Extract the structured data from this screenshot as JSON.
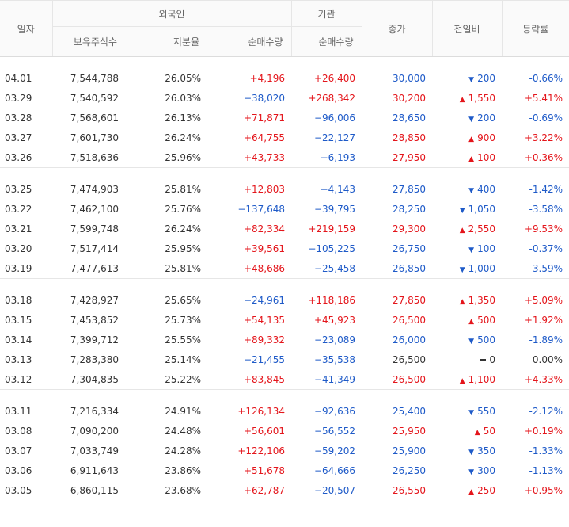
{
  "headers": {
    "date": "일자",
    "foreign": "외국인",
    "holdings": "보유주식수",
    "ratio": "지분율",
    "net_foreign": "순매수량",
    "institution": "기관",
    "net_inst": "순매수량",
    "close": "종가",
    "change": "전일비",
    "rate": "등락률"
  },
  "colors": {
    "up": "#e4151b",
    "down": "#1e5ac8",
    "flat": "#333333"
  },
  "groups": [
    [
      {
        "date": "04.01",
        "holdings": "7,544,788",
        "ratio": "26.05%",
        "foreign": "+4,196",
        "inst": "+26,400",
        "close": "30,000",
        "dir": "down",
        "change": "200",
        "rate": "-0.66%"
      },
      {
        "date": "03.29",
        "holdings": "7,540,592",
        "ratio": "26.03%",
        "foreign": "−38,020",
        "inst": "+268,342",
        "close": "30,200",
        "dir": "up",
        "change": "1,550",
        "rate": "+5.41%"
      },
      {
        "date": "03.28",
        "holdings": "7,568,601",
        "ratio": "26.13%",
        "foreign": "+71,871",
        "inst": "−96,006",
        "close": "28,650",
        "dir": "down",
        "change": "200",
        "rate": "-0.69%"
      },
      {
        "date": "03.27",
        "holdings": "7,601,730",
        "ratio": "26.24%",
        "foreign": "+64,755",
        "inst": "−22,127",
        "close": "28,850",
        "dir": "up",
        "change": "900",
        "rate": "+3.22%"
      },
      {
        "date": "03.26",
        "holdings": "7,518,636",
        "ratio": "25.96%",
        "foreign": "+43,733",
        "inst": "−6,193",
        "close": "27,950",
        "dir": "up",
        "change": "100",
        "rate": "+0.36%"
      }
    ],
    [
      {
        "date": "03.25",
        "holdings": "7,474,903",
        "ratio": "25.81%",
        "foreign": "+12,803",
        "inst": "−4,143",
        "close": "27,850",
        "dir": "down",
        "change": "400",
        "rate": "-1.42%"
      },
      {
        "date": "03.22",
        "holdings": "7,462,100",
        "ratio": "25.76%",
        "foreign": "−137,648",
        "inst": "−39,795",
        "close": "28,250",
        "dir": "down",
        "change": "1,050",
        "rate": "-3.58%"
      },
      {
        "date": "03.21",
        "holdings": "7,599,748",
        "ratio": "26.24%",
        "foreign": "+82,334",
        "inst": "+219,159",
        "close": "29,300",
        "dir": "up",
        "change": "2,550",
        "rate": "+9.53%"
      },
      {
        "date": "03.20",
        "holdings": "7,517,414",
        "ratio": "25.95%",
        "foreign": "+39,561",
        "inst": "−105,225",
        "close": "26,750",
        "dir": "down",
        "change": "100",
        "rate": "-0.37%"
      },
      {
        "date": "03.19",
        "holdings": "7,477,613",
        "ratio": "25.81%",
        "foreign": "+48,686",
        "inst": "−25,458",
        "close": "26,850",
        "dir": "down",
        "change": "1,000",
        "rate": "-3.59%"
      }
    ],
    [
      {
        "date": "03.18",
        "holdings": "7,428,927",
        "ratio": "25.65%",
        "foreign": "−24,961",
        "inst": "+118,186",
        "close": "27,850",
        "dir": "up",
        "change": "1,350",
        "rate": "+5.09%"
      },
      {
        "date": "03.15",
        "holdings": "7,453,852",
        "ratio": "25.73%",
        "foreign": "+54,135",
        "inst": "+45,923",
        "close": "26,500",
        "dir": "up",
        "change": "500",
        "rate": "+1.92%"
      },
      {
        "date": "03.14",
        "holdings": "7,399,712",
        "ratio": "25.55%",
        "foreign": "+89,332",
        "inst": "−23,089",
        "close": "26,000",
        "dir": "down",
        "change": "500",
        "rate": "-1.89%"
      },
      {
        "date": "03.13",
        "holdings": "7,283,380",
        "ratio": "25.14%",
        "foreign": "−21,455",
        "inst": "−35,538",
        "close": "26,500",
        "dir": "flat",
        "change": "0",
        "rate": "0.00%"
      },
      {
        "date": "03.12",
        "holdings": "7,304,835",
        "ratio": "25.22%",
        "foreign": "+83,845",
        "inst": "−41,349",
        "close": "26,500",
        "dir": "up",
        "change": "1,100",
        "rate": "+4.33%"
      }
    ],
    [
      {
        "date": "03.11",
        "holdings": "7,216,334",
        "ratio": "24.91%",
        "foreign": "+126,134",
        "inst": "−92,636",
        "close": "25,400",
        "dir": "down",
        "change": "550",
        "rate": "-2.12%"
      },
      {
        "date": "03.08",
        "holdings": "7,090,200",
        "ratio": "24.48%",
        "foreign": "+56,601",
        "inst": "−56,552",
        "close": "25,950",
        "dir": "up",
        "change": "50",
        "rate": "+0.19%"
      },
      {
        "date": "03.07",
        "holdings": "7,033,749",
        "ratio": "24.28%",
        "foreign": "+122,106",
        "inst": "−59,202",
        "close": "25,900",
        "dir": "down",
        "change": "350",
        "rate": "-1.33%"
      },
      {
        "date": "03.06",
        "holdings": "6,911,643",
        "ratio": "23.86%",
        "foreign": "+51,678",
        "inst": "−64,666",
        "close": "26,250",
        "dir": "down",
        "change": "300",
        "rate": "-1.13%"
      },
      {
        "date": "03.05",
        "holdings": "6,860,115",
        "ratio": "23.68%",
        "foreign": "+62,787",
        "inst": "−20,507",
        "close": "26,550",
        "dir": "up",
        "change": "250",
        "rate": "+0.95%"
      }
    ]
  ]
}
